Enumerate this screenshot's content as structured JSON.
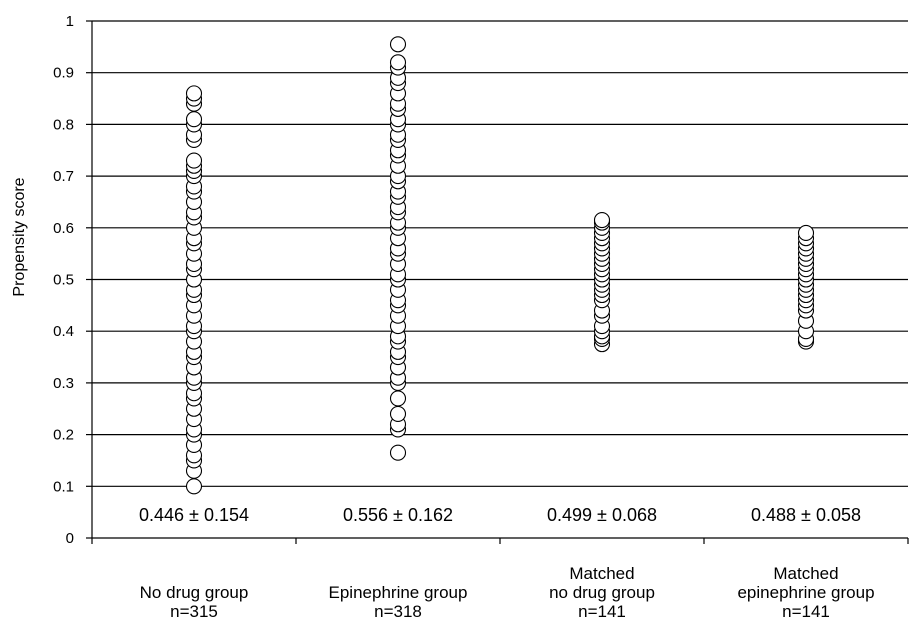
{
  "chart_data": {
    "type": "scatter",
    "ylabel": "Propensity score",
    "ylim": [
      0,
      1
    ],
    "yticks": [
      "0",
      "0.1",
      "0.2",
      "0.3",
      "0.4",
      "0.5",
      "0.6",
      "0.7",
      "0.8",
      "0.9",
      "1"
    ],
    "grid": true,
    "marker": "open-circle",
    "categories": [
      {
        "lines": [
          "No drug group",
          "n=315"
        ],
        "annotation": "0.446 ± 0.154",
        "points": [
          0.1,
          0.13,
          0.15,
          0.16,
          0.18,
          0.2,
          0.21,
          0.23,
          0.25,
          0.27,
          0.28,
          0.3,
          0.31,
          0.33,
          0.35,
          0.36,
          0.38,
          0.4,
          0.41,
          0.43,
          0.45,
          0.47,
          0.48,
          0.5,
          0.52,
          0.53,
          0.55,
          0.57,
          0.58,
          0.6,
          0.62,
          0.63,
          0.65,
          0.67,
          0.68,
          0.7,
          0.71,
          0.72,
          0.73,
          0.77,
          0.78,
          0.8,
          0.81,
          0.84,
          0.85,
          0.86
        ]
      },
      {
        "lines": [
          "Epinephrine group",
          "n=318"
        ],
        "annotation": "0.556 ± 0.162",
        "points": [
          0.165,
          0.21,
          0.22,
          0.24,
          0.27,
          0.3,
          0.31,
          0.33,
          0.35,
          0.36,
          0.38,
          0.39,
          0.41,
          0.43,
          0.45,
          0.46,
          0.48,
          0.5,
          0.51,
          0.53,
          0.55,
          0.56,
          0.58,
          0.6,
          0.61,
          0.63,
          0.64,
          0.66,
          0.67,
          0.69,
          0.7,
          0.72,
          0.74,
          0.75,
          0.77,
          0.78,
          0.8,
          0.81,
          0.83,
          0.84,
          0.86,
          0.88,
          0.89,
          0.91,
          0.92,
          0.955
        ]
      },
      {
        "lines": [
          "Matched",
          "no drug group",
          "n=141"
        ],
        "annotation": "0.499 ± 0.068",
        "points": [
          0.375,
          0.385,
          0.39,
          0.4,
          0.41,
          0.43,
          0.44,
          0.46,
          0.47,
          0.48,
          0.49,
          0.5,
          0.51,
          0.52,
          0.53,
          0.54,
          0.55,
          0.56,
          0.57,
          0.58,
          0.59,
          0.6,
          0.61,
          0.615
        ]
      },
      {
        "lines": [
          "Matched",
          "epinephrine group",
          "n=141"
        ],
        "annotation": "0.488 ± 0.058",
        "points": [
          0.38,
          0.385,
          0.4,
          0.42,
          0.44,
          0.45,
          0.46,
          0.47,
          0.48,
          0.49,
          0.5,
          0.51,
          0.52,
          0.53,
          0.54,
          0.55,
          0.56,
          0.57,
          0.58,
          0.59
        ]
      }
    ]
  }
}
